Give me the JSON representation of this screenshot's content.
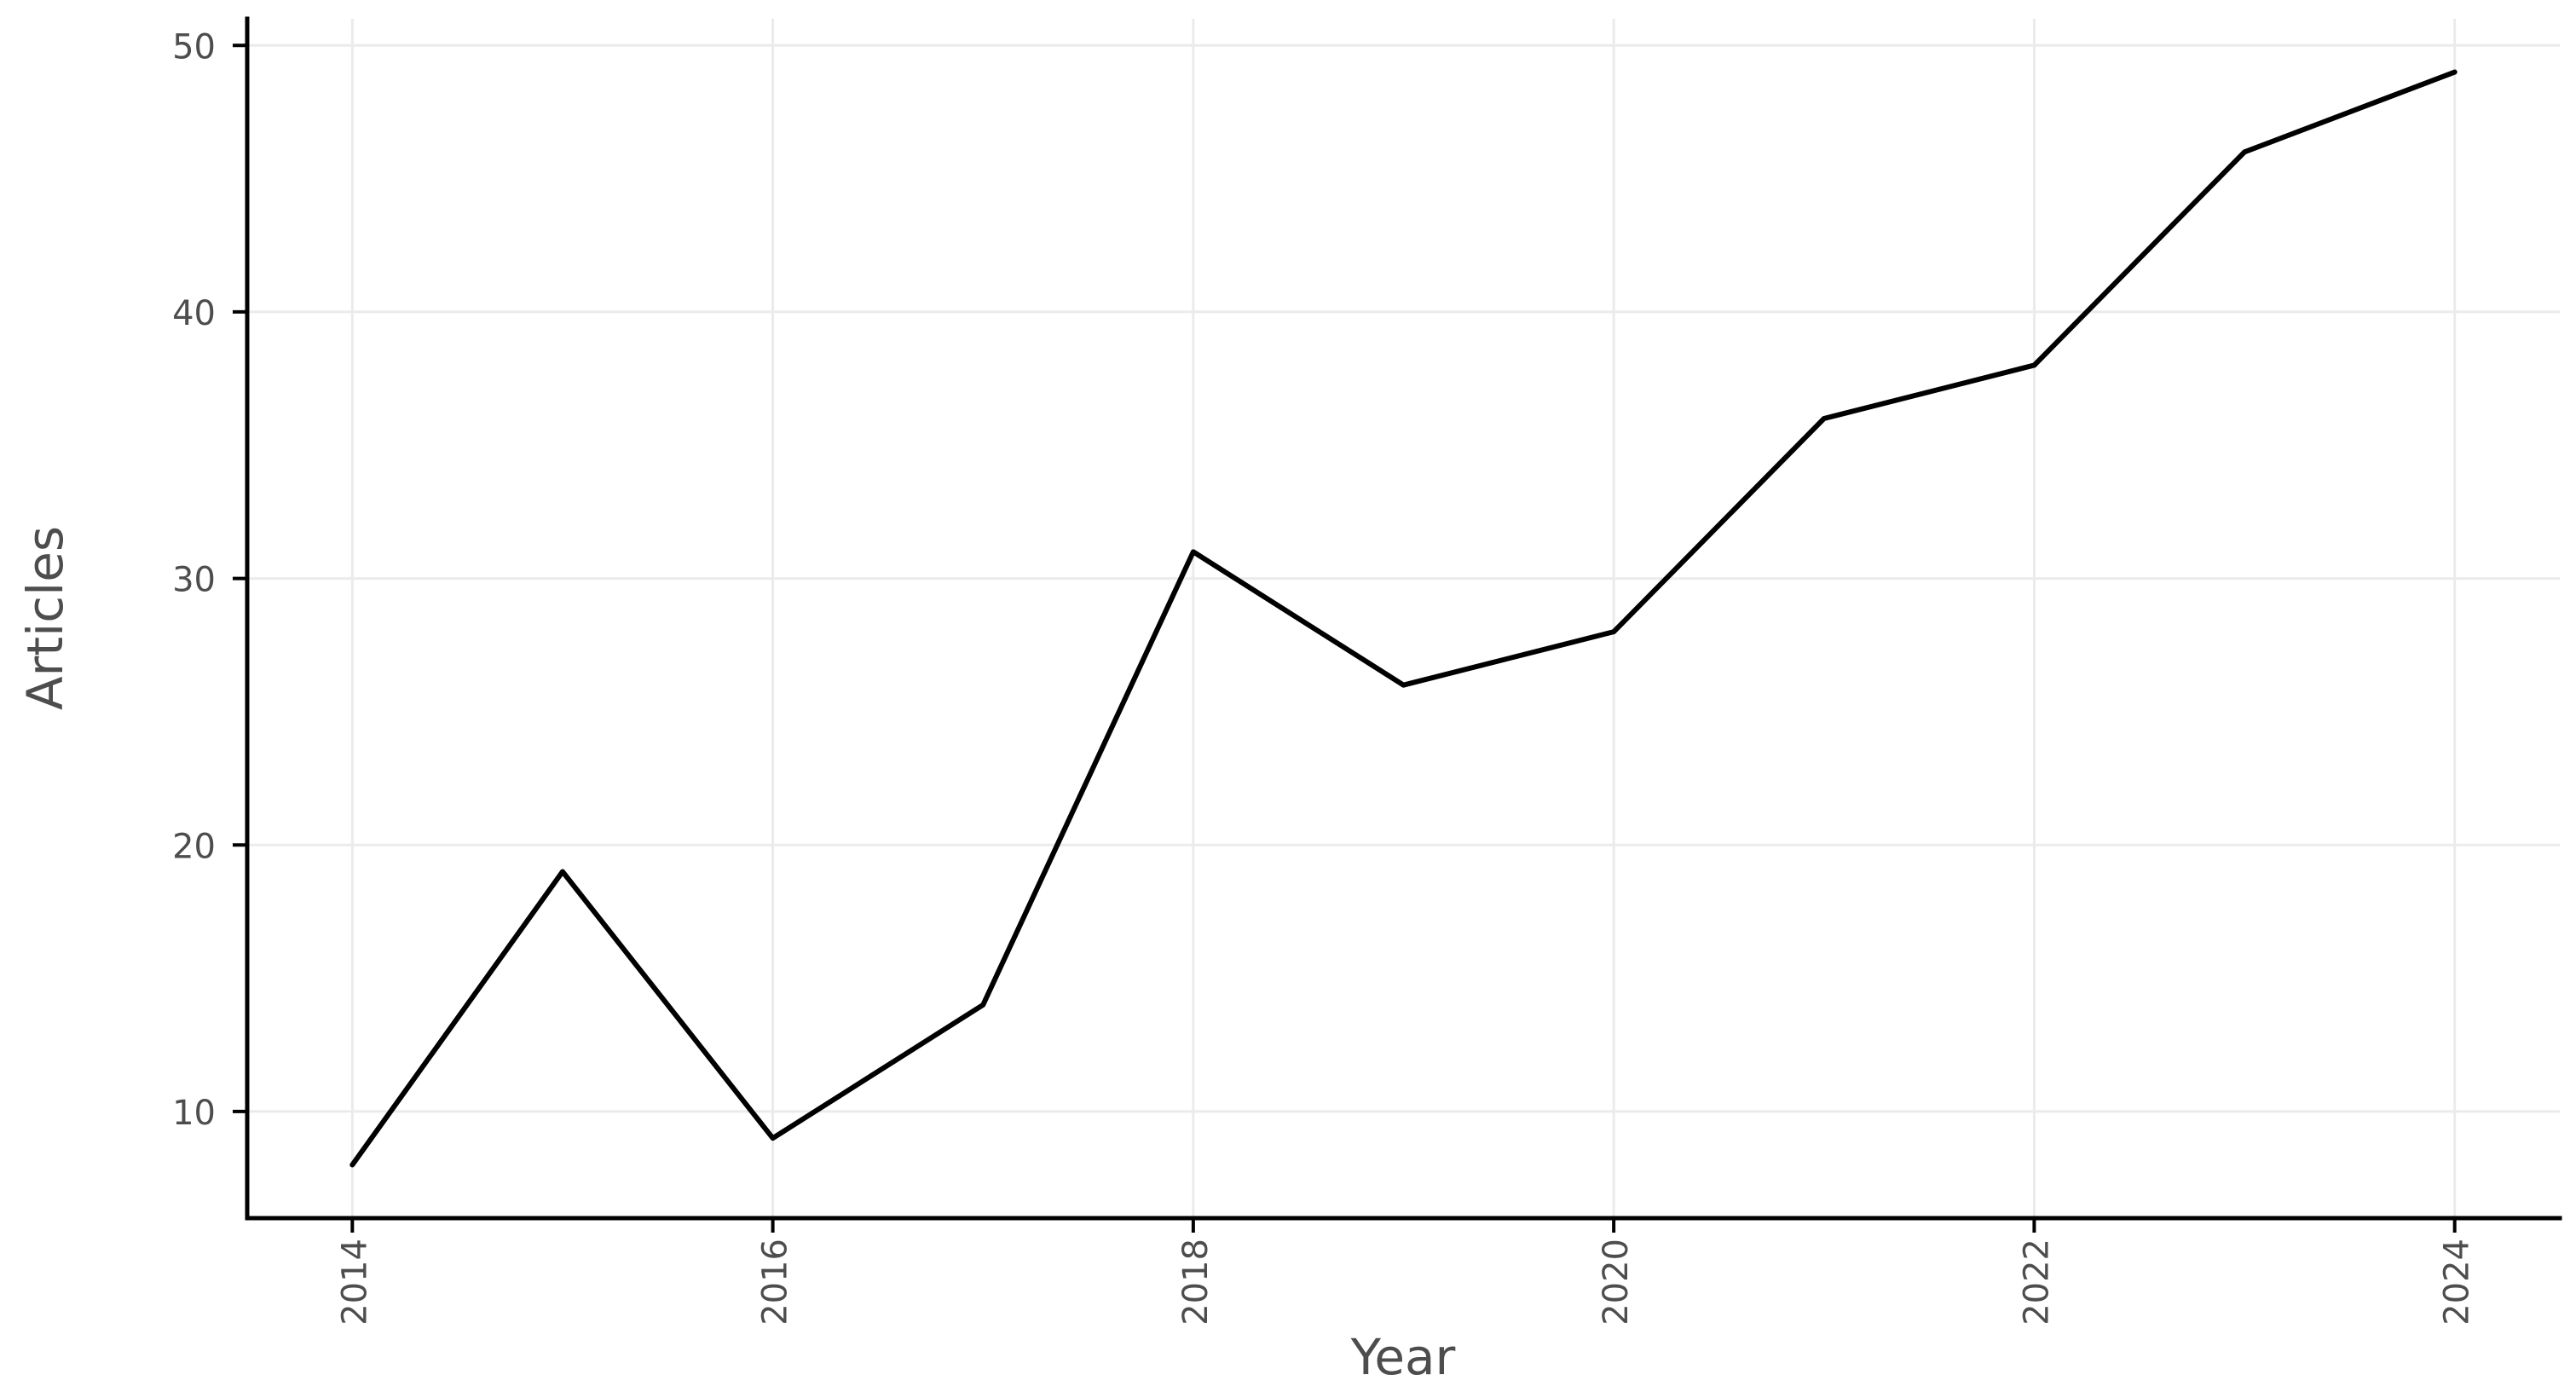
{
  "chart_data": {
    "type": "line",
    "title": "",
    "xlabel": "Year",
    "ylabel": "Articles",
    "x": [
      2014,
      2015,
      2016,
      2017,
      2018,
      2019,
      2020,
      2021,
      2022,
      2023,
      2024
    ],
    "series": [
      {
        "name": "Articles",
        "values": [
          8,
          19,
          9,
          14,
          31,
          26,
          28,
          36,
          38,
          46,
          49
        ]
      }
    ],
    "xlim": [
      2013.5,
      2024.5
    ],
    "ylim": [
      6,
      51
    ],
    "x_ticks": [
      2014,
      2016,
      2018,
      2020,
      2022,
      2024
    ],
    "y_ticks": [
      10,
      20,
      30,
      40,
      50
    ],
    "grid": "major-only",
    "legend_position": "none",
    "x_tick_rotation_deg": -90,
    "styles": {
      "line_color": "#000000",
      "axis_color": "#000000",
      "grid_color": "#ebebeb",
      "tick_color": "#000000",
      "tick_label_color": "#4d4d4d",
      "axis_title_color": "#4d4d4d",
      "background": "#ffffff"
    }
  }
}
